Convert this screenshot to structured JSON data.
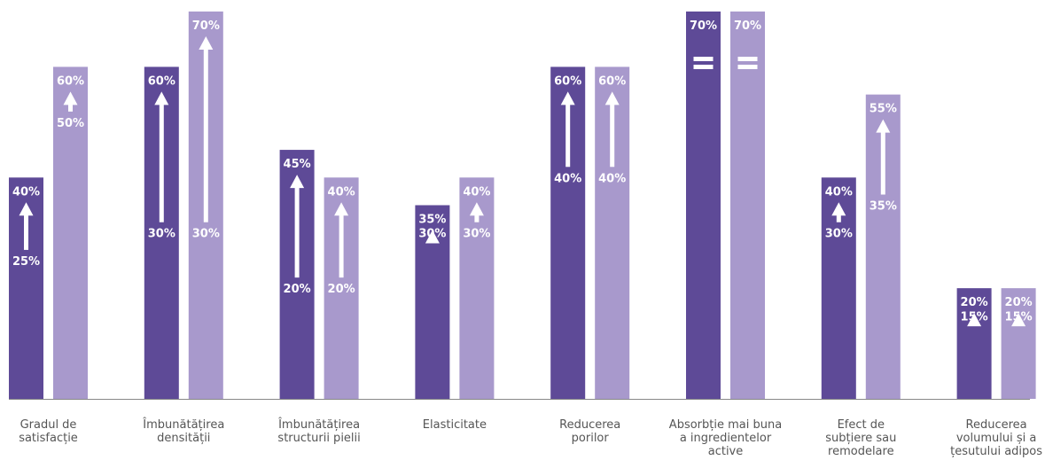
{
  "chart_data": {
    "type": "bar",
    "ylim": [
      0,
      70
    ],
    "grid": false,
    "legend": "none",
    "colors": {
      "dark": "#5e4a97",
      "light": "#a899cc",
      "baseline": "#888888",
      "label": "#555555"
    },
    "categories": [
      {
        "label": [
          "Gradul de",
          "satisfacție"
        ],
        "bars": [
          {
            "from": 25,
            "to": 40,
            "marker": "arrow",
            "from_label": "25%",
            "to_label": "40%"
          },
          {
            "from": 50,
            "to": 60,
            "marker": "arrow",
            "from_label": "50%",
            "to_label": "60%"
          }
        ]
      },
      {
        "label": [
          "Îmbunătățirea",
          "densității"
        ],
        "bars": [
          {
            "from": 30,
            "to": 60,
            "marker": "arrow",
            "from_label": "30%",
            "to_label": "60%"
          },
          {
            "from": 30,
            "to": 70,
            "marker": "arrow",
            "from_label": "30%",
            "to_label": "70%"
          }
        ]
      },
      {
        "label": [
          "Îmbunătățirea",
          "structurii pielii"
        ],
        "bars": [
          {
            "from": 20,
            "to": 45,
            "marker": "arrow",
            "from_label": "20%",
            "to_label": "45%"
          },
          {
            "from": 20,
            "to": 40,
            "marker": "arrow",
            "from_label": "20%",
            "to_label": "40%"
          }
        ]
      },
      {
        "label": [
          "Elasticitate"
        ],
        "bars": [
          {
            "from": 30,
            "to": 35,
            "marker": "arrow",
            "from_label": "30%",
            "to_label": "35%"
          },
          {
            "from": 30,
            "to": 40,
            "marker": "arrow",
            "from_label": "30%",
            "to_label": "40%"
          }
        ]
      },
      {
        "label": [
          "Reducerea",
          "porilor"
        ],
        "bars": [
          {
            "from": 40,
            "to": 60,
            "marker": "arrow",
            "from_label": "40%",
            "to_label": "60%"
          },
          {
            "from": 40,
            "to": 60,
            "marker": "arrow",
            "from_label": "40%",
            "to_label": "60%"
          }
        ]
      },
      {
        "label": [
          "Absorbție mai buna",
          "a ingredientelor",
          "active"
        ],
        "bars": [
          {
            "from": 70,
            "to": 70,
            "marker": "equal",
            "from_label": "",
            "to_label": "70%"
          },
          {
            "from": 70,
            "to": 70,
            "marker": "equal",
            "from_label": "",
            "to_label": "70%"
          }
        ]
      },
      {
        "label": [
          "Efect de",
          "subțiere sau",
          "remodelare"
        ],
        "bars": [
          {
            "from": 30,
            "to": 40,
            "marker": "arrow",
            "from_label": "30%",
            "to_label": "40%"
          },
          {
            "from": 35,
            "to": 55,
            "marker": "arrow",
            "from_label": "35%",
            "to_label": "55%"
          }
        ]
      },
      {
        "label": [
          "Reducerea",
          "volumului și a",
          "țesutului adipos"
        ],
        "bars": [
          {
            "from": 15,
            "to": 20,
            "marker": "arrow",
            "from_label": "15%",
            "to_label": "20%"
          },
          {
            "from": 15,
            "to": 20,
            "marker": "arrow",
            "from_label": "15%",
            "to_label": "20%"
          }
        ]
      }
    ]
  }
}
